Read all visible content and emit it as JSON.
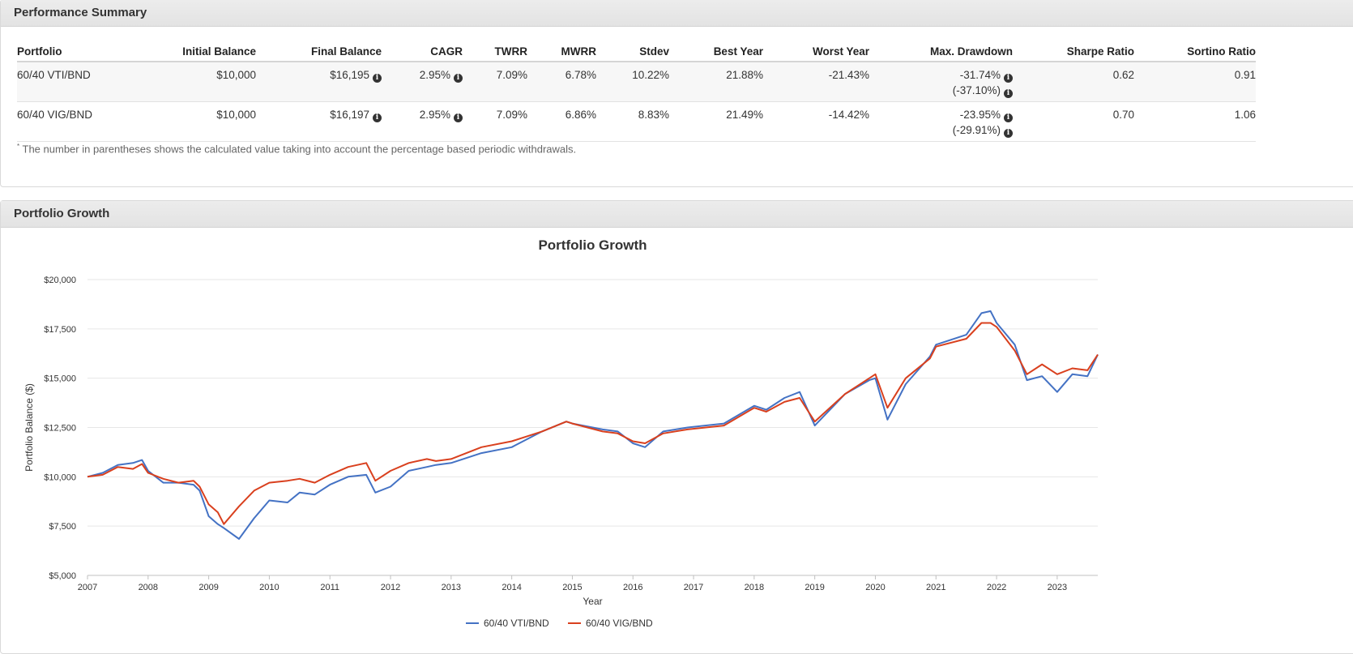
{
  "summary": {
    "title": "Performance Summary",
    "headers": [
      "Portfolio",
      "Initial Balance",
      "Final Balance",
      "CAGR",
      "TWRR",
      "MWRR",
      "Stdev",
      "Best Year",
      "Worst Year",
      "Max. Drawdown",
      "Sharpe Ratio",
      "Sortino Ratio"
    ],
    "rows": [
      {
        "portfolio": "60/40 VTI/BND",
        "initial": "$10,000",
        "final": "$16,195",
        "cagr": "2.95%",
        "twrr": "7.09%",
        "mwrr": "6.78%",
        "stdev": "10.22%",
        "best": "21.88%",
        "worst": "-21.43%",
        "drawdown": "-31.74%",
        "drawdown2": "(-37.10%)",
        "sharpe": "0.62",
        "sortino": "0.91"
      },
      {
        "portfolio": "60/40 VIG/BND",
        "initial": "$10,000",
        "final": "$16,197",
        "cagr": "2.95%",
        "twrr": "7.09%",
        "mwrr": "6.86%",
        "stdev": "8.83%",
        "best": "21.49%",
        "worst": "-14.42%",
        "drawdown": "-23.95%",
        "drawdown2": "(-29.91%)",
        "sharpe": "0.70",
        "sortino": "1.06"
      }
    ],
    "footnote_mark": "*",
    "footnote": "The number in parentheses shows the calculated value taking into account the percentage based periodic withdrawals.",
    "info_icon": "i"
  },
  "growth": {
    "title": "Portfolio Growth"
  },
  "chart_data": {
    "type": "line",
    "title": "Portfolio Growth",
    "xlabel": "Year",
    "ylabel": "Portfolio Balance ($)",
    "ylim": [
      5000,
      20000
    ],
    "xlim": [
      2007,
      2023.67
    ],
    "yticks": [
      5000,
      7500,
      10000,
      12500,
      15000,
      17500,
      20000
    ],
    "ytick_labels": [
      "$5,000",
      "$7,500",
      "$10,000",
      "$12,500",
      "$15,000",
      "$17,500",
      "$20,000"
    ],
    "xticks": [
      "2007",
      "2008",
      "2009",
      "2010",
      "2011",
      "2012",
      "2013",
      "2014",
      "2015",
      "2016",
      "2017",
      "2018",
      "2019",
      "2020",
      "2021",
      "2022",
      "2023"
    ],
    "legend": "bottom-center",
    "series": [
      {
        "name": "60/40 VTI/BND",
        "color": "#4472c4",
        "x": [
          2007,
          2007.25,
          2007.5,
          2007.75,
          2007.9,
          2008.0,
          2008.25,
          2008.5,
          2008.75,
          2008.85,
          2009.0,
          2009.15,
          2009.25,
          2009.5,
          2009.75,
          2010.0,
          2010.3,
          2010.5,
          2010.75,
          2011.0,
          2011.3,
          2011.6,
          2011.75,
          2012.0,
          2012.3,
          2012.6,
          2012.75,
          2013.0,
          2013.5,
          2014.0,
          2014.5,
          2014.9,
          2015.0,
          2015.5,
          2015.75,
          2016.0,
          2016.2,
          2016.5,
          2016.9,
          2017.5,
          2018.0,
          2018.2,
          2018.5,
          2018.75,
          2019.0,
          2019.5,
          2019.9,
          2020.0,
          2020.2,
          2020.5,
          2020.9,
          2021.0,
          2021.5,
          2021.75,
          2021.9,
          2022.0,
          2022.3,
          2022.5,
          2022.75,
          2023.0,
          2023.25,
          2023.5,
          2023.67
        ],
        "values": [
          10000,
          10200,
          10600,
          10700,
          10850,
          10300,
          9700,
          9700,
          9600,
          9300,
          8000,
          7600,
          7400,
          6850,
          7900,
          8800,
          8700,
          9200,
          9100,
          9600,
          10000,
          10100,
          9200,
          9500,
          10300,
          10500,
          10600,
          10700,
          11200,
          11500,
          12300,
          12800,
          12700,
          12400,
          12300,
          11700,
          11500,
          12300,
          12500,
          12700,
          13600,
          13400,
          14000,
          14300,
          12600,
          14200,
          14900,
          15000,
          12900,
          14700,
          16100,
          16700,
          17200,
          18300,
          18400,
          17800,
          16700,
          14900,
          15100,
          14300,
          15200,
          15100,
          16200
        ]
      },
      {
        "name": "60/40 VIG/BND",
        "color": "#d9401e",
        "x": [
          2007,
          2007.25,
          2007.5,
          2007.75,
          2007.9,
          2008.0,
          2008.25,
          2008.5,
          2008.75,
          2008.85,
          2009.0,
          2009.15,
          2009.25,
          2009.5,
          2009.75,
          2010.0,
          2010.3,
          2010.5,
          2010.75,
          2011.0,
          2011.3,
          2011.6,
          2011.75,
          2012.0,
          2012.3,
          2012.6,
          2012.75,
          2013.0,
          2013.5,
          2014.0,
          2014.5,
          2014.9,
          2015.0,
          2015.5,
          2015.75,
          2016.0,
          2016.2,
          2016.5,
          2016.9,
          2017.5,
          2018.0,
          2018.2,
          2018.5,
          2018.75,
          2019.0,
          2019.5,
          2019.9,
          2020.0,
          2020.2,
          2020.5,
          2020.9,
          2021.0,
          2021.5,
          2021.75,
          2021.9,
          2022.0,
          2022.3,
          2022.5,
          2022.75,
          2023.0,
          2023.25,
          2023.5,
          2023.67
        ],
        "values": [
          10000,
          10100,
          10500,
          10400,
          10650,
          10200,
          9900,
          9700,
          9800,
          9500,
          8600,
          8200,
          7600,
          8500,
          9300,
          9700,
          9800,
          9900,
          9700,
          10100,
          10500,
          10700,
          9800,
          10300,
          10700,
          10900,
          10800,
          10900,
          11500,
          11800,
          12300,
          12800,
          12700,
          12300,
          12200,
          11800,
          11700,
          12200,
          12400,
          12600,
          13500,
          13300,
          13800,
          14000,
          12800,
          14200,
          15000,
          15200,
          13500,
          15000,
          16000,
          16600,
          17000,
          17800,
          17800,
          17600,
          16400,
          15200,
          15700,
          15200,
          15500,
          15400,
          16200
        ]
      }
    ]
  }
}
